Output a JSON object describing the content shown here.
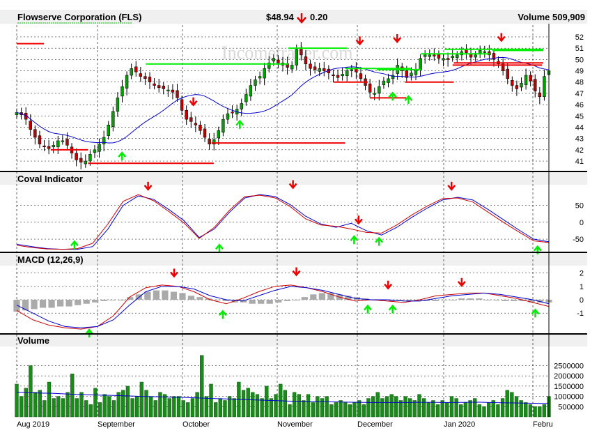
{
  "header": {
    "title": "Flowserve Corporation (FLS)",
    "price": "$48.94",
    "change": "0.20",
    "volume_label": "Volume 509,909"
  },
  "watermark": "Incometrader.com",
  "colors": {
    "up": "#00a000",
    "down": "#c00000",
    "green_marker": "#00ee00",
    "red_marker": "#ee0000",
    "ma": "#0000cc",
    "volume_bar": "#1a8a1a",
    "hist": "#aaaaaa",
    "grid": "#000000"
  },
  "x_labels": [
    "Aug 2019",
    "September",
    "October",
    "November",
    "December",
    "Jan 2020",
    "Febru"
  ],
  "chart_data": [
    {
      "type": "candlestick",
      "title": "Flowserve Corporation (FLS)",
      "y_ticks": [
        41,
        42,
        43,
        44,
        45,
        46,
        47,
        48,
        49,
        50,
        51,
        52
      ],
      "ylim": [
        40.2,
        52.8
      ],
      "closes": [
        45.3,
        45.1,
        44.7,
        43.8,
        43.1,
        42.5,
        42.3,
        42.1,
        42.4,
        42.8,
        42.8,
        42.4,
        41.7,
        41.1,
        40.9,
        41.0,
        41.6,
        42.0,
        42.5,
        43.1,
        44.2,
        45.4,
        46.6,
        47.6,
        48.6,
        49.2,
        48.9,
        48.5,
        48.3,
        48.0,
        47.7,
        47.5,
        47.4,
        47.3,
        47.1,
        46.6,
        45.5,
        44.7,
        44.5,
        44.2,
        43.7,
        43.1,
        42.5,
        42.9,
        43.7,
        44.7,
        45.2,
        45.3,
        45.6,
        46.1,
        46.9,
        47.7,
        48.2,
        48.5,
        49.2,
        49.7,
        50.1,
        49.7,
        49.5,
        49.3,
        49.5,
        50.9,
        50.4,
        49.6,
        49.2,
        49.1,
        49.2,
        49.0,
        48.8,
        48.6,
        48.4,
        48.7,
        49.0,
        49.1,
        48.9,
        48.3,
        47.7,
        47.1,
        47.0,
        47.6,
        48.1,
        48.3,
        48.6,
        49.5,
        49.0,
        48.4,
        48.8,
        49.1,
        50.1,
        50.4,
        50.4,
        50.3,
        50.1,
        50.1,
        50.0,
        50.3,
        50.4,
        50.7,
        50.6,
        50.2,
        50.4,
        50.8,
        50.7,
        50.4,
        50.0,
        49.6,
        49.0,
        48.3,
        47.7,
        47.4,
        47.9,
        48.6,
        48.1,
        47.2,
        46.7,
        48.5,
        49.0
      ],
      "marker_lines": [
        {
          "color": "red",
          "x1": 0.0,
          "x2": 2.4,
          "y": 51.4
        },
        {
          "color": "red",
          "x1": 3.0,
          "x2": 6.3,
          "y": 42.0
        },
        {
          "color": "red",
          "x1": 6.3,
          "x2": 17.4,
          "y": 40.8
        },
        {
          "color": "green",
          "x1": 11.4,
          "x2": 24.0,
          "y": 49.6
        },
        {
          "color": "red",
          "x1": 17.2,
          "x2": 29.0,
          "y": 42.6
        },
        {
          "color": "green",
          "x1": 24.0,
          "x2": 29.2,
          "y": 51.0
        },
        {
          "color": "green",
          "x1": 29.0,
          "x2": 34.8,
          "y": 49.2
        },
        {
          "color": "red",
          "x1": 28.0,
          "x2": 31.0,
          "y": 48.0
        },
        {
          "color": "red",
          "x1": 31.2,
          "x2": 34.4,
          "y": 46.6
        },
        {
          "color": "green",
          "x1": 31.8,
          "x2": 35.7,
          "y": 49.1
        },
        {
          "color": "red",
          "x1": 34.3,
          "x2": 38.6,
          "y": 48.0
        },
        {
          "color": "green",
          "x1": 35.7,
          "x2": 41.8,
          "y": 50.5
        },
        {
          "color": "green",
          "x1": 37.8,
          "x2": 46.5,
          "y": 50.9
        },
        {
          "color": "red",
          "x1": 38.6,
          "x2": 46.5,
          "y": 49.7
        },
        {
          "color": "green",
          "x1": 42.0,
          "x2": 46.5,
          "y": 50.8
        },
        {
          "color": "red",
          "x1": 38.5,
          "x2": 46.4,
          "y": 49.5
        }
      ],
      "arrows": [
        {
          "dir": "up",
          "x": 9.3,
          "y": 41.8
        },
        {
          "dir": "down",
          "x": 15.6,
          "y": 45.9
        },
        {
          "dir": "up",
          "x": 19.7,
          "y": 44.6
        },
        {
          "dir": "down",
          "x": 30.3,
          "y": 51.3
        },
        {
          "dir": "down",
          "x": 33.6,
          "y": 51.5
        },
        {
          "dir": "up",
          "x": 33.2,
          "y": 47.1
        },
        {
          "dir": "up",
          "x": 34.6,
          "y": 46.8
        },
        {
          "dir": "down",
          "x": 42.8,
          "y": 51.6
        }
      ]
    },
    {
      "type": "line",
      "title": "Coval Indicator",
      "y_ticks": [
        50,
        0,
        -50
      ],
      "ylim": [
        -85,
        105
      ],
      "series": [
        {
          "color": "#0000cc",
          "values": [
            -65,
            -72,
            -78,
            -80,
            -80,
            -72,
            -20,
            50,
            78,
            68,
            38,
            5,
            -45,
            -20,
            30,
            72,
            82,
            76,
            52,
            18,
            -5,
            -15,
            -3,
            -25,
            -38,
            -15,
            15,
            42,
            66,
            74,
            66,
            38,
            8,
            -22,
            -50,
            -58
          ]
        },
        {
          "color": "#cc0000",
          "values": [
            -68,
            -75,
            -79,
            -80,
            -78,
            -62,
            -5,
            62,
            82,
            64,
            32,
            -2,
            -48,
            -15,
            36,
            76,
            80,
            72,
            46,
            10,
            -8,
            -12,
            -20,
            -30,
            -32,
            -8,
            22,
            48,
            70,
            72,
            60,
            30,
            0,
            -28,
            -55,
            -60
          ]
        }
      ],
      "arrows": [
        {
          "dir": "up",
          "x": 5.1,
          "y": -55
        },
        {
          "dir": "down",
          "x": 11.6,
          "y": 95
        },
        {
          "dir": "up",
          "x": 17.9,
          "y": -65
        },
        {
          "dir": "down",
          "x": 24.4,
          "y": 100
        },
        {
          "dir": "down",
          "x": 30.2,
          "y": -5
        },
        {
          "dir": "up",
          "x": 29.8,
          "y": -40
        },
        {
          "dir": "up",
          "x": 32.0,
          "y": -45
        },
        {
          "dir": "down",
          "x": 38.4,
          "y": 95
        },
        {
          "dir": "up",
          "x": 46.0,
          "y": -70
        }
      ]
    },
    {
      "type": "line",
      "title": "MACD (12,26,9)",
      "y_ticks": [
        2,
        1,
        0,
        -1
      ],
      "ylim": [
        -2.4,
        2.4
      ],
      "series": [
        {
          "color": "#cc0000",
          "values": [
            -0.8,
            -1.5,
            -1.9,
            -2.1,
            -2.2,
            -2.0,
            -1.2,
            0.2,
            0.9,
            1.1,
            1.0,
            0.6,
            0.0,
            -0.3,
            0.1,
            0.6,
            1.0,
            1.1,
            0.9,
            0.6,
            0.2,
            -0.1,
            0.0,
            -0.1,
            -0.2,
            0.0,
            0.3,
            0.4,
            0.5,
            0.5,
            0.3,
            0.1,
            -0.2,
            -0.5
          ]
        },
        {
          "color": "#0000cc",
          "values": [
            -0.4,
            -1.0,
            -1.6,
            -2.0,
            -2.1,
            -2.0,
            -1.5,
            -0.4,
            0.6,
            1.0,
            1.0,
            0.8,
            0.3,
            0.0,
            -0.1,
            0.3,
            0.7,
            1.0,
            0.9,
            0.7,
            0.4,
            0.1,
            0.0,
            0.0,
            -0.1,
            -0.1,
            0.1,
            0.3,
            0.4,
            0.5,
            0.4,
            0.2,
            0.0,
            -0.3
          ]
        }
      ],
      "histogram": [
        -0.9,
        -0.8,
        -0.7,
        -0.6,
        -0.6,
        -0.5,
        -0.5,
        -0.4,
        -0.3,
        -0.2,
        -0.1,
        0.0,
        0.0,
        0.2,
        0.4,
        0.6,
        0.7,
        0.7,
        0.6,
        0.5,
        0.3,
        0.2,
        0.1,
        0.0,
        -0.1,
        -0.2,
        -0.2,
        -0.3,
        -0.3,
        -0.3,
        -0.2,
        -0.1,
        0.0,
        0.2,
        0.4,
        0.5,
        0.5,
        0.4,
        0.3,
        0.2,
        0.1,
        0.0,
        -0.1,
        -0.1,
        -0.1,
        -0.1,
        -0.1,
        -0.1,
        -0.1,
        0.0,
        0.0,
        0.1,
        0.1,
        0.1,
        0.0,
        0.0,
        -0.1,
        -0.1,
        -0.1,
        -0.2,
        -0.2,
        -0.2
      ],
      "arrows": [
        {
          "dir": "up",
          "x": 6.4,
          "y": -2.2
        },
        {
          "dir": "down",
          "x": 13.9,
          "y": 1.7
        },
        {
          "dir": "up",
          "x": 18.2,
          "y": -0.8
        },
        {
          "dir": "down",
          "x": 24.7,
          "y": 1.8
        },
        {
          "dir": "up",
          "x": 31.0,
          "y": -0.4
        },
        {
          "dir": "down",
          "x": 32.8,
          "y": 0.8
        },
        {
          "dir": "up",
          "x": 33.2,
          "y": -0.4
        },
        {
          "dir": "down",
          "x": 39.3,
          "y": 1.0
        },
        {
          "dir": "up",
          "x": 45.8,
          "y": -0.7
        }
      ]
    },
    {
      "type": "bar",
      "title": "Volume",
      "y_ticks": [
        2500000,
        2000000,
        1500000,
        1000000,
        500000
      ],
      "y_tick_labels": [
        "2500000",
        "2000000",
        "1500000",
        "1000000",
        "500000"
      ],
      "ylim": [
        0,
        3400000
      ],
      "values": [
        1600000,
        1000000,
        1400000,
        2500000,
        1200000,
        1300000,
        800000,
        1700000,
        900000,
        1000000,
        900000,
        1200000,
        2100000,
        900000,
        1200000,
        800000,
        600000,
        1400000,
        700000,
        1100000,
        1000000,
        800000,
        1200000,
        1300000,
        1500000,
        900000,
        1000000,
        1700000,
        1300000,
        1000000,
        800000,
        1200000,
        1100000,
        900000,
        1000000,
        1000000,
        800000,
        700000,
        900000,
        1200000,
        3000000,
        1000000,
        1600000,
        700000,
        900000,
        800000,
        1000000,
        900000,
        1700000,
        1300000,
        1400000,
        1200000,
        1100000,
        900000,
        1500000,
        900000,
        1100000,
        1600000,
        1300000,
        600000,
        1200000,
        1100000,
        800000,
        1100000,
        700000,
        1000000,
        900000,
        1000000,
        600000,
        700000,
        800000,
        700000,
        600000,
        700000,
        800000,
        600000,
        900000,
        1000000,
        1200000,
        900000,
        1000000,
        1100000,
        1000000,
        800000,
        1000000,
        900000,
        800000,
        1100000,
        900000,
        700000,
        800000,
        600000,
        800000,
        700000,
        1000000,
        900000,
        600000,
        700000,
        800000,
        900000,
        600000,
        500000,
        700000,
        800000,
        600000,
        900000,
        1300000,
        1200000,
        1000000,
        800000,
        700000,
        600000,
        500000,
        500000,
        600000,
        1000000
      ],
      "ma": [
        1200000,
        1180000,
        1160000,
        1150000,
        1120000,
        1100000,
        1080000,
        1060000,
        1050000,
        1030000,
        1010000,
        990000,
        980000,
        960000,
        950000,
        930000,
        910000,
        890000,
        870000,
        850000,
        830000,
        810000,
        790000,
        770000,
        760000,
        750000,
        740000,
        730000,
        720000,
        710000,
        700000,
        700000,
        700000,
        700000,
        710000,
        710000,
        700000,
        700000,
        710000,
        720000,
        700000,
        690000,
        680000,
        670000,
        660000,
        650000
      ]
    }
  ]
}
